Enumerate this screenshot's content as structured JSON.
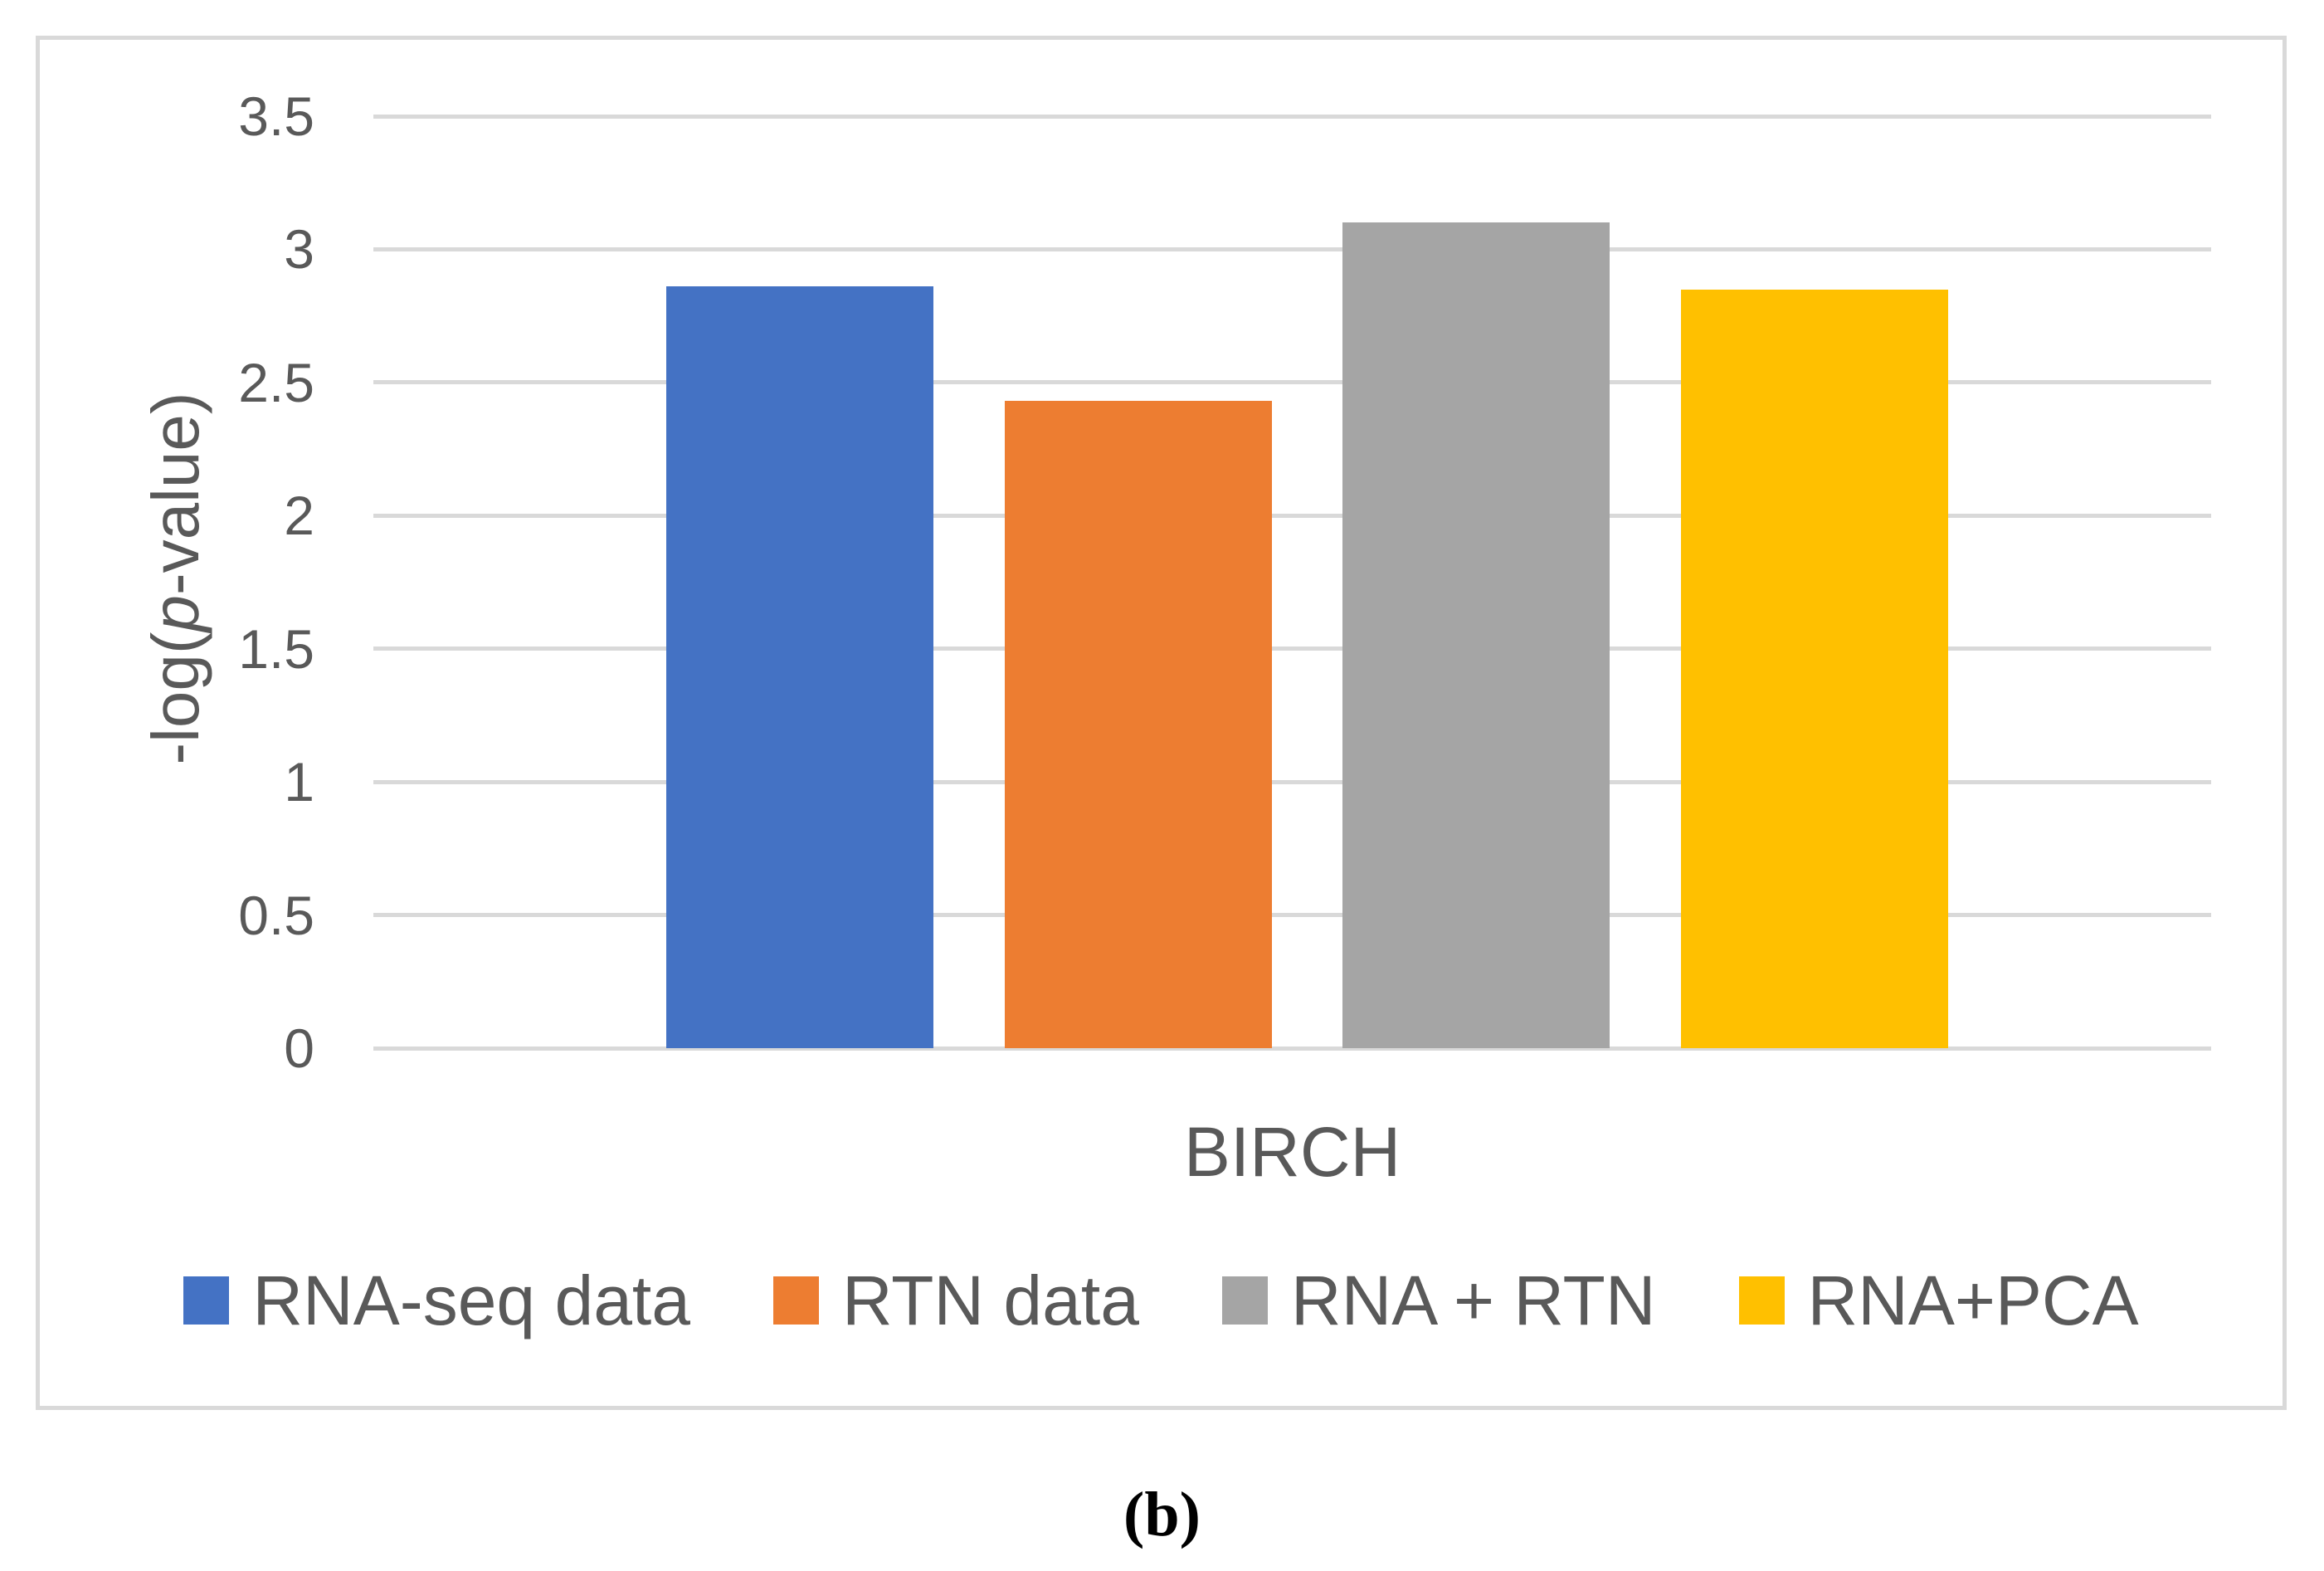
{
  "figure": {
    "caption": "(b)"
  },
  "colors": {
    "background": "#FFFFFF",
    "plot_border": "#D9D9D9",
    "gridline": "#D9D9D9",
    "text": "#595959",
    "caption_text": "#000000"
  },
  "chart_data": {
    "type": "bar",
    "title": "",
    "categories": [
      "BIRCH"
    ],
    "series": [
      {
        "name": "RNA-seq data",
        "color": "#4472C4",
        "values": [
          2.86
        ]
      },
      {
        "name": "RTN data",
        "color": "#ED7D31",
        "values": [
          2.43
        ]
      },
      {
        "name": "RNA + RTN",
        "color": "#A5A5A5",
        "values": [
          3.1
        ]
      },
      {
        "name": "RNA+PCA",
        "color": "#FFC000",
        "values": [
          2.85
        ]
      }
    ],
    "xlabel": "",
    "ylabel": "-log(p-value)",
    "ylabel_parts": {
      "prefix": "-log(",
      "italic": "p",
      "suffix": "-value)"
    },
    "ylim": [
      0,
      3.5
    ],
    "yticks": [
      0,
      0.5,
      1,
      1.5,
      2,
      2.5,
      3,
      3.5
    ],
    "ytick_labels": [
      "0",
      "0.5",
      "1",
      "1.5",
      "2",
      "2.5",
      "3",
      "3.5"
    ],
    "grid": true,
    "legend_position": "bottom"
  }
}
